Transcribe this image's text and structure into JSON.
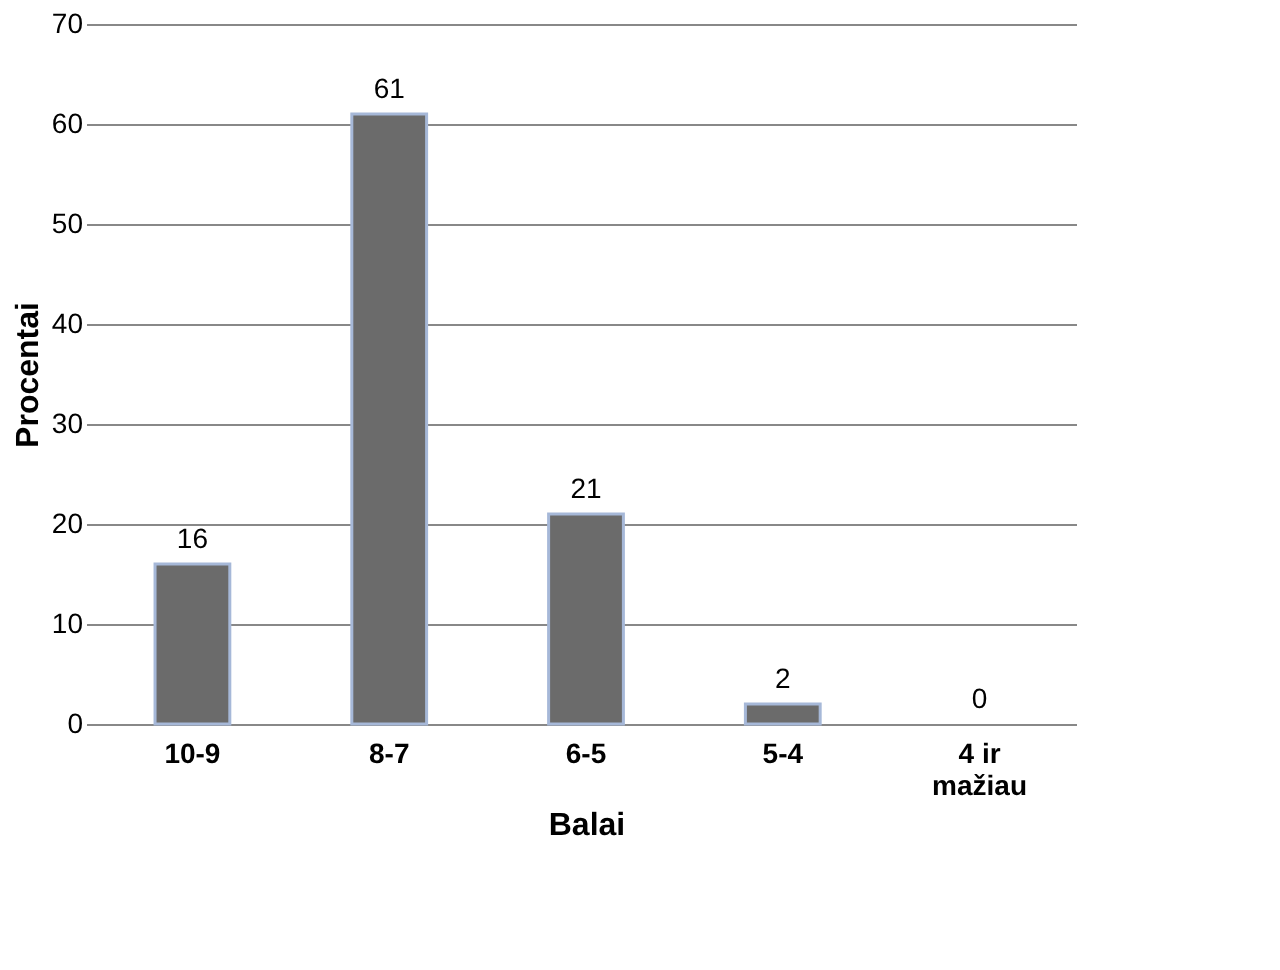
{
  "chart_data": {
    "type": "bar",
    "categories": [
      "10-9",
      "8-7",
      "6-5",
      "5-4",
      "4 ir mažiau"
    ],
    "values": [
      16,
      61,
      21,
      2,
      0
    ],
    "color": "#6b6b6b",
    "xlabel": "Balai",
    "ylabel": "Procentai",
    "ylim": [
      0,
      70
    ],
    "yticks": [
      0,
      10,
      20,
      30,
      40,
      50,
      60,
      70
    ],
    "grid": "y",
    "data_labels": true
  }
}
